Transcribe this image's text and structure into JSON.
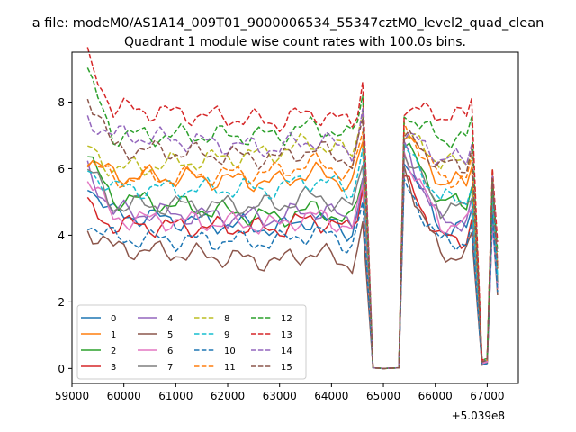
{
  "figure": {
    "suptitle": "a file: modeM0/AS1A14_009T01_9000006534_55347cztM0_level2_quad_clean",
    "title": "Quadrant 1 module wise count rates with 100.0s bins.",
    "offset_text": "+5.039e8"
  },
  "chart_data": {
    "type": "line",
    "title": "Quadrant 1 module wise count rates with 100.0s bins.",
    "xlabel": "",
    "ylabel": "",
    "x_offset": 503900000,
    "xlim": [
      59000,
      67600
    ],
    "ylim": [
      -0.45,
      9.5
    ],
    "xticks": [
      59000,
      60000,
      61000,
      62000,
      63000,
      64000,
      65000,
      66000,
      67000
    ],
    "xtick_labels": [
      "59000",
      "60000",
      "61000",
      "62000",
      "63000",
      "64000",
      "65000",
      "66000",
      "67000"
    ],
    "yticks": [
      0,
      2,
      4,
      6,
      8
    ],
    "ytick_labels": [
      "0",
      "2",
      "4",
      "6",
      "8"
    ],
    "grid": false,
    "legend_position": "lower-left",
    "legend_columns": 4,
    "segments": [
      {
        "start": 59300,
        "end": 64700,
        "step": 100
      },
      {
        "start": 64700,
        "end": 65200,
        "step": 100
      },
      {
        "start": 65300,
        "end": 66700,
        "step": 100
      },
      {
        "start": 66800,
        "end": 67000,
        "step": 100
      },
      {
        "start": 67000,
        "end": 67200,
        "step": 100
      }
    ],
    "series": [
      {
        "name": "0",
        "color": "#1f77b4",
        "dash": "solid",
        "levels": [
          5.6,
          4.6,
          4.2,
          0,
          6.4,
          4.2,
          0.2,
          4.6,
          2.5
        ]
      },
      {
        "name": "1",
        "color": "#ff7f0e",
        "dash": "solid",
        "levels": [
          6.3,
          5.8,
          5.6,
          0,
          7.2,
          5.6,
          0.2,
          5.8,
          3.0
        ]
      },
      {
        "name": "2",
        "color": "#2ca02c",
        "dash": "solid",
        "levels": [
          6.3,
          5.1,
          4.5,
          0,
          6.8,
          5.0,
          0.2,
          5.3,
          2.6
        ]
      },
      {
        "name": "3",
        "color": "#d62728",
        "dash": "solid",
        "levels": [
          4.8,
          4.3,
          4.2,
          0,
          5.7,
          3.9,
          0.15,
          5.6,
          2.4
        ]
      },
      {
        "name": "4",
        "color": "#9467bd",
        "dash": "solid",
        "levels": [
          6.0,
          4.7,
          4.5,
          0,
          6.6,
          4.4,
          0.15,
          4.4,
          2.5
        ]
      },
      {
        "name": "5",
        "color": "#8c564b",
        "dash": "solid",
        "levels": [
          4.2,
          3.6,
          3.2,
          0,
          5.9,
          3.4,
          0.1,
          4.5,
          2.2
        ]
      },
      {
        "name": "6",
        "color": "#e377c2",
        "dash": "solid",
        "levels": [
          5.8,
          4.5,
          4.3,
          0,
          6.5,
          4.3,
          0.15,
          4.4,
          2.4
        ]
      },
      {
        "name": "7",
        "color": "#7f7f7f",
        "dash": "solid",
        "levels": [
          6.0,
          4.9,
          4.9,
          0,
          6.5,
          4.8,
          0.2,
          5.0,
          2.6
        ]
      },
      {
        "name": "8",
        "color": "#bcbd22",
        "dash": "dashed",
        "levels": [
          6.6,
          6.0,
          6.5,
          0,
          7.1,
          6.2,
          0.2,
          6.0,
          3.0
        ]
      },
      {
        "name": "9",
        "color": "#17becf",
        "dash": "dashed",
        "levels": [
          6.0,
          5.4,
          5.4,
          0,
          6.6,
          5.1,
          0.2,
          5.3,
          2.8
        ]
      },
      {
        "name": "10",
        "color": "#1f77b4",
        "dash": "dashed",
        "levels": [
          4.4,
          3.9,
          3.8,
          0,
          5.5,
          3.8,
          0.1,
          4.6,
          2.3
        ]
      },
      {
        "name": "11",
        "color": "#ff7f0e",
        "dash": "dashed",
        "levels": [
          6.2,
          5.7,
          5.9,
          0,
          7.3,
          5.7,
          0.2,
          5.9,
          3.1
        ]
      },
      {
        "name": "12",
        "color": "#2ca02c",
        "dash": "dashed",
        "levels": [
          8.8,
          7.0,
          7.0,
          0,
          7.7,
          6.9,
          0.25,
          5.7,
          3.5
        ]
      },
      {
        "name": "13",
        "color": "#d62728",
        "dash": "dashed",
        "levels": [
          9.3,
          7.8,
          7.4,
          0,
          7.9,
          7.6,
          0.25,
          6.0,
          3.8
        ]
      },
      {
        "name": "14",
        "color": "#9467bd",
        "dash": "dashed",
        "levels": [
          7.5,
          7.0,
          6.6,
          0,
          7.1,
          6.3,
          0.2,
          5.8,
          3.2
        ]
      },
      {
        "name": "15",
        "color": "#8c564b",
        "dash": "dashed",
        "levels": [
          8.3,
          6.6,
          6.3,
          0,
          7.0,
          6.1,
          0.2,
          5.7,
          3.0
        ]
      }
    ]
  }
}
